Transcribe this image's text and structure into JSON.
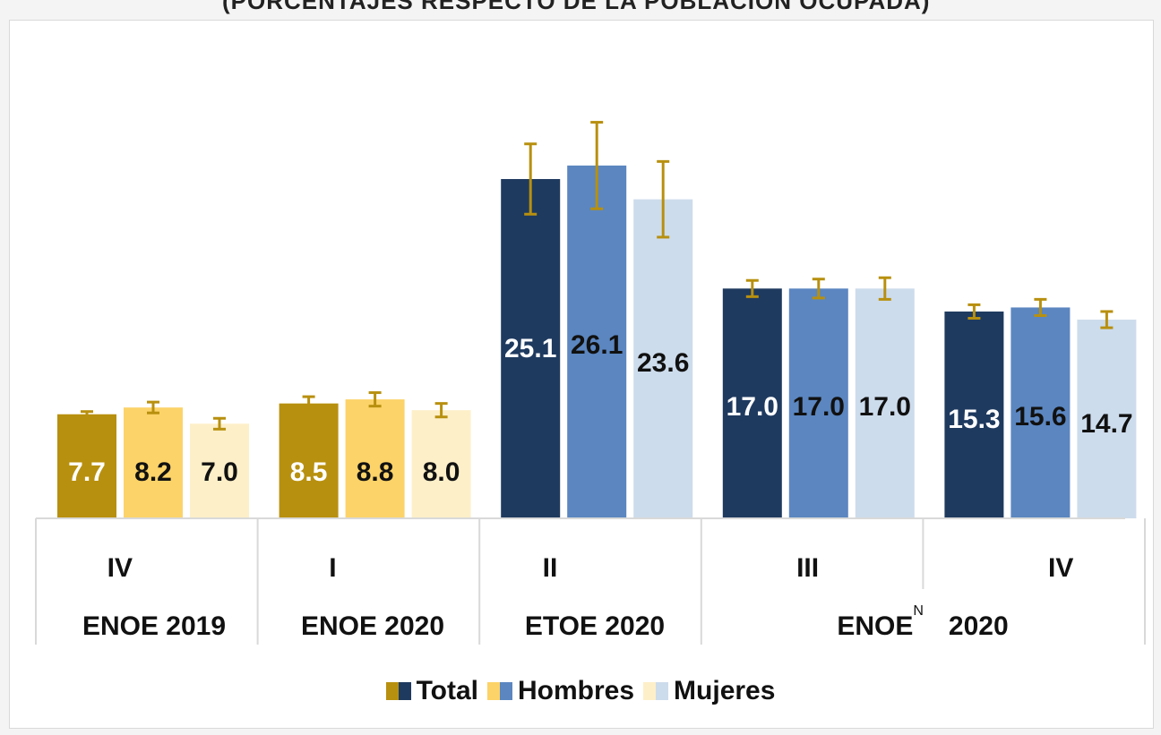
{
  "title": "(PORCENTAJES RESPECTO DE LA POBLACIÓN OCUPADA)",
  "colors": {
    "enoe_total": "#b8900f",
    "enoe_hombres": "#fcd368",
    "enoe_mujeres": "#fdefc8",
    "covid_total": "#1f3a5f",
    "covid_hombres": "#5b86c0",
    "covid_mujeres": "#cddcec",
    "error_bar": "#b8900f",
    "frame": "#d9d9d9"
  },
  "legend": [
    {
      "label": "Total",
      "colors": [
        "#b8900f",
        "#1f3a5f"
      ]
    },
    {
      "label": "Hombres",
      "colors": [
        "#fcd368",
        "#5b86c0"
      ]
    },
    {
      "label": "Mujeres",
      "colors": [
        "#fdefc8",
        "#cddcec"
      ]
    }
  ],
  "chart_data": {
    "type": "bar",
    "categories": [
      "IV",
      "I",
      "II",
      "III",
      "IV"
    ],
    "groups": [
      {
        "label": "ENOE 2019",
        "span": 1
      },
      {
        "label": "ENOE 2020",
        "span": 1
      },
      {
        "label": "ETOE 2020",
        "span": 1
      },
      {
        "label": "ENOE",
        "superscript": "N",
        "year": "2020",
        "span": 2
      }
    ],
    "series": [
      {
        "name": "Total",
        "values": [
          7.7,
          8.5,
          25.1,
          17.0,
          15.3
        ],
        "labels": [
          "7.7",
          "8.5",
          "25.1",
          "17.0",
          "15.3"
        ]
      },
      {
        "name": "Hombres",
        "values": [
          8.2,
          8.8,
          26.1,
          17.0,
          15.6
        ],
        "labels": [
          "8.2",
          "8.8",
          "26.1",
          "17.0",
          "15.6"
        ]
      },
      {
        "name": "Mujeres",
        "values": [
          7.0,
          8.0,
          23.6,
          17.0,
          14.7
        ],
        "labels": [
          "7.0",
          "8.0",
          "23.6",
          "17.0",
          "14.7"
        ]
      }
    ],
    "error_margins": [
      [
        0.2,
        0.5,
        2.6,
        0.6,
        0.5
      ],
      [
        0.4,
        0.5,
        3.2,
        0.7,
        0.6
      ],
      [
        0.4,
        0.5,
        2.8,
        0.8,
        0.6
      ]
    ],
    "ylim": [
      0,
      30
    ],
    "grid": false
  }
}
